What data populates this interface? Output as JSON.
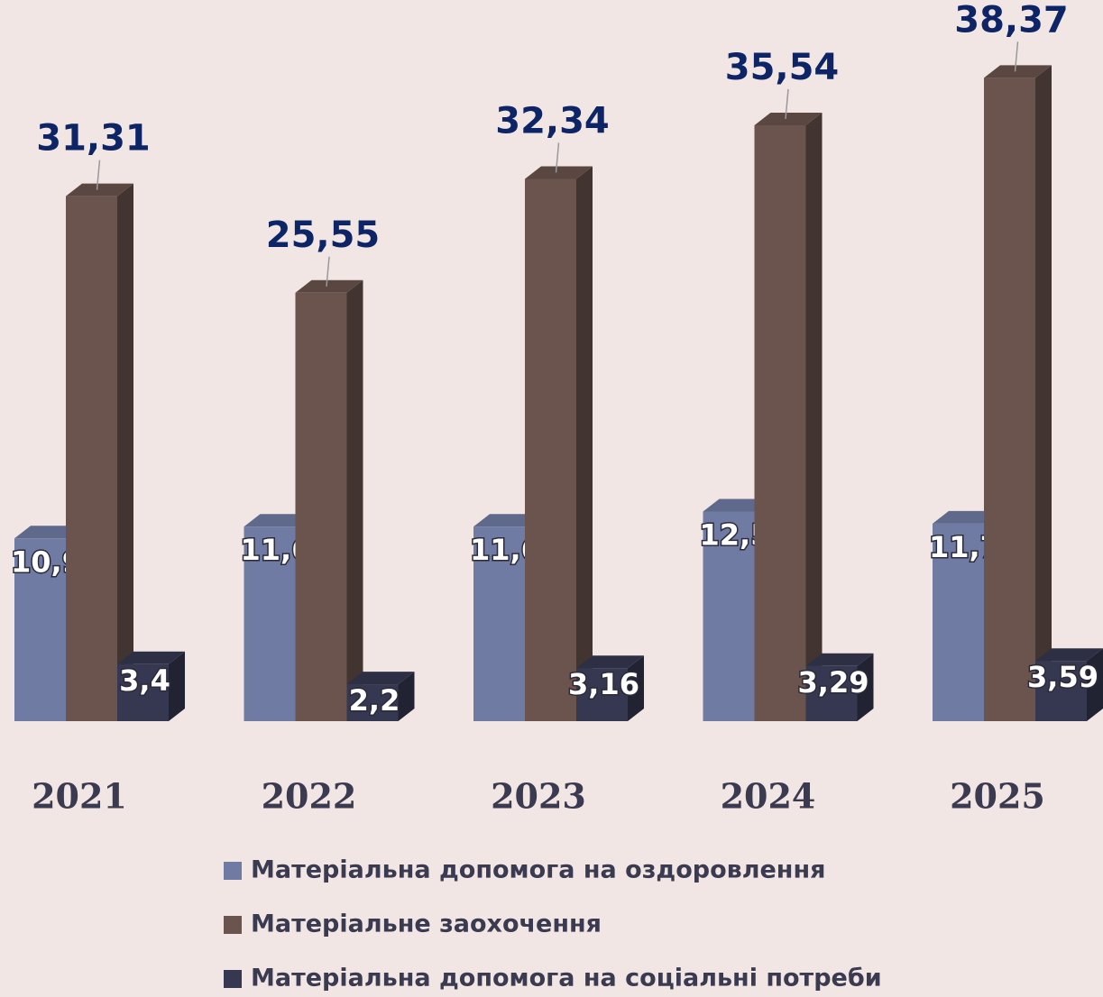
{
  "chart_data": {
    "type": "bar3d",
    "categories": [
      "2021",
      "2022",
      "2023",
      "2024",
      "2025"
    ],
    "series": [
      {
        "name": "Матеріальна допомога на оздоровлення",
        "color": "#6f7ba3",
        "values": [
          10.9,
          11.6,
          11.6,
          12.5,
          11.78
        ],
        "value_labels": [
          "10,9",
          "11,6",
          "11,6",
          "12,5",
          "11,78"
        ]
      },
      {
        "name": "Матеріальне заохочення",
        "color": "#6b544d",
        "values": [
          31.31,
          25.55,
          32.34,
          35.54,
          38.37
        ],
        "value_labels": [
          "31,31",
          "25,55",
          "32,34",
          "35,54",
          "38,37"
        ]
      },
      {
        "name": "Матеріальна допомога на соціальні потреби",
        "color": "#353850",
        "values": [
          3.4,
          2.2,
          3.16,
          3.29,
          3.59
        ],
        "value_labels": [
          "3,4",
          "2,2",
          "3,16",
          "3,29",
          "3,59"
        ]
      }
    ],
    "legend": "bottom"
  }
}
